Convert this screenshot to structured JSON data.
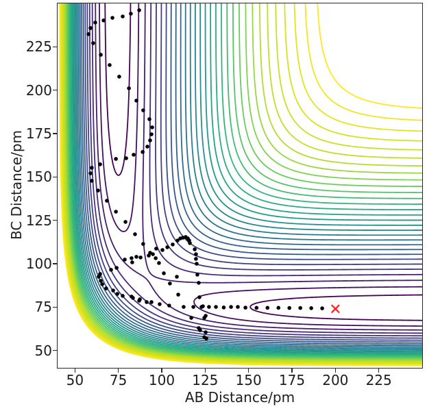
{
  "figure": {
    "xlabel": "AB Distance/pm",
    "ylabel": "BC Distance/pm",
    "x_ticks": [
      50,
      75,
      100,
      125,
      150,
      175,
      200,
      225
    ],
    "y_ticks": [
      50,
      75,
      100,
      125,
      150,
      175,
      200,
      225
    ],
    "background_color": "#ffffff",
    "spine_color": "#262626",
    "text_color": "#1c1c1c"
  },
  "chart_data": {
    "type": "contour",
    "title": "",
    "xlabel": "AB Distance/pm",
    "ylabel": "BC Distance/pm",
    "xlim": [
      40,
      250
    ],
    "ylim": [
      40,
      250
    ],
    "grid": false,
    "legend": false,
    "colormap": "viridis",
    "contour_low_color": "#440154",
    "contour_high_color": "#fde725",
    "n_levels": 30,
    "level_min_eV": -4.64,
    "level_max_eV": -0.97,
    "surface_model": {
      "name": "LEPS collinear A-B-C potential",
      "D_eV": 4.7466,
      "beta_per_pm": 0.019413,
      "r0_pm": 74.13,
      "sato": 0.15
    },
    "trajectory_marker": {
      "symbol": "dot",
      "color": "#000000",
      "radius_px": 2.8
    },
    "trajectory_pm": [
      [
        192.4,
        74.3
      ],
      [
        186.1,
        74.4
      ],
      [
        179.8,
        74.5
      ],
      [
        173.5,
        74.5
      ],
      [
        167.2,
        74.6
      ],
      [
        160.9,
        74.6
      ],
      [
        154.6,
        74.6
      ],
      [
        148.2,
        74.7
      ],
      [
        143.8,
        75.1
      ],
      [
        139.9,
        75.1
      ],
      [
        135.7,
        74.8
      ],
      [
        131.2,
        75.1
      ],
      [
        127.2,
        75.1
      ],
      [
        123.7,
        75.5
      ],
      [
        118.2,
        75.1
      ],
      [
        112.6,
        75.1
      ],
      [
        109.5,
        82.2
      ],
      [
        104.3,
        75.9
      ],
      [
        98.8,
        76.7
      ],
      [
        94.1,
        77.9
      ],
      [
        91.3,
        77.9
      ],
      [
        87.4,
        79.5
      ],
      [
        87.0,
        78.7
      ],
      [
        83.4,
        80.3
      ],
      [
        82.6,
        81.1
      ],
      [
        77.5,
        81.5
      ],
      [
        74.4,
        82.6
      ],
      [
        72.0,
        84.6
      ],
      [
        68.0,
        85.8
      ],
      [
        65.7,
        88.2
      ],
      [
        64.9,
        90.1
      ],
      [
        63.7,
        92.5
      ],
      [
        64.5,
        94.1
      ],
      [
        70.8,
        96.5
      ],
      [
        74.0,
        97.6
      ],
      [
        78.7,
        102.4
      ],
      [
        82.6,
        103.2
      ],
      [
        83.0,
        100.8
      ],
      [
        85.4,
        104.0
      ],
      [
        87.8,
        103.6
      ],
      [
        92.5,
        104.7
      ],
      [
        94.9,
        105.5
      ],
      [
        93.3,
        106.3
      ],
      [
        96.5,
        103.2
      ],
      [
        96.8,
        108.7
      ],
      [
        100.4,
        107.9
      ],
      [
        98.4,
        100.4
      ],
      [
        101.2,
        94.5
      ],
      [
        104.7,
        88.6
      ],
      [
        108.7,
        92.5
      ],
      [
        103.2,
        109.5
      ],
      [
        106.3,
        111.1
      ],
      [
        109.1,
        113.4
      ],
      [
        110.7,
        114.6
      ],
      [
        112.2,
        115.0
      ],
      [
        113.8,
        115.4
      ],
      [
        115.0,
        114.6
      ],
      [
        115.8,
        113.4
      ],
      [
        116.2,
        111.9
      ],
      [
        119.0,
        108.3
      ],
      [
        119.7,
        105.5
      ],
      [
        119.7,
        102.8
      ],
      [
        120.1,
        100.0
      ],
      [
        120.5,
        93.7
      ],
      [
        121.3,
        89.0
      ],
      [
        121.7,
        80.7
      ],
      [
        122.9,
        75.1
      ],
      [
        117.0,
        68.8
      ],
      [
        124.5,
        68.8
      ],
      [
        125.3,
        70.0
      ],
      [
        121.3,
        62.9
      ],
      [
        122.1,
        61.7
      ],
      [
        125.3,
        60.5
      ],
      [
        124.5,
        57.7
      ],
      [
        125.7,
        56.9
      ],
      [
        89.3,
        111.4
      ],
      [
        84.6,
        117.0
      ],
      [
        79.1,
        124.1
      ],
      [
        73.6,
        130.0
      ],
      [
        68.4,
        136.3
      ],
      [
        63.3,
        142.2
      ],
      [
        59.7,
        147.8
      ],
      [
        59.0,
        152.1
      ],
      [
        59.7,
        155.3
      ],
      [
        64.5,
        157.3
      ],
      [
        73.6,
        160.4
      ],
      [
        79.5,
        160.8
      ],
      [
        83.8,
        162.8
      ],
      [
        89.0,
        164.4
      ],
      [
        91.7,
        167.5
      ],
      [
        93.3,
        171.1
      ],
      [
        94.1,
        174.6
      ],
      [
        94.5,
        178.6
      ],
      [
        92.9,
        183.3
      ],
      [
        89.3,
        188.4
      ],
      [
        85.4,
        194.0
      ],
      [
        81.1,
        201.1
      ],
      [
        75.5,
        207.8
      ],
      [
        70.0,
        214.5
      ],
      [
        64.9,
        220.4
      ],
      [
        60.5,
        227.1
      ],
      [
        57.8,
        232.3
      ],
      [
        59.0,
        235.8
      ],
      [
        61.7,
        239.0
      ],
      [
        66.5,
        240.2
      ],
      [
        71.6,
        241.7
      ],
      [
        77.5,
        242.5
      ],
      [
        82.2,
        244.1
      ],
      [
        87.0,
        246.1
      ]
    ],
    "end_marker": {
      "symbol": "x",
      "x_pm": 200,
      "y_pm": 74,
      "color": "#ff2222",
      "half_size_px": 5
    }
  }
}
